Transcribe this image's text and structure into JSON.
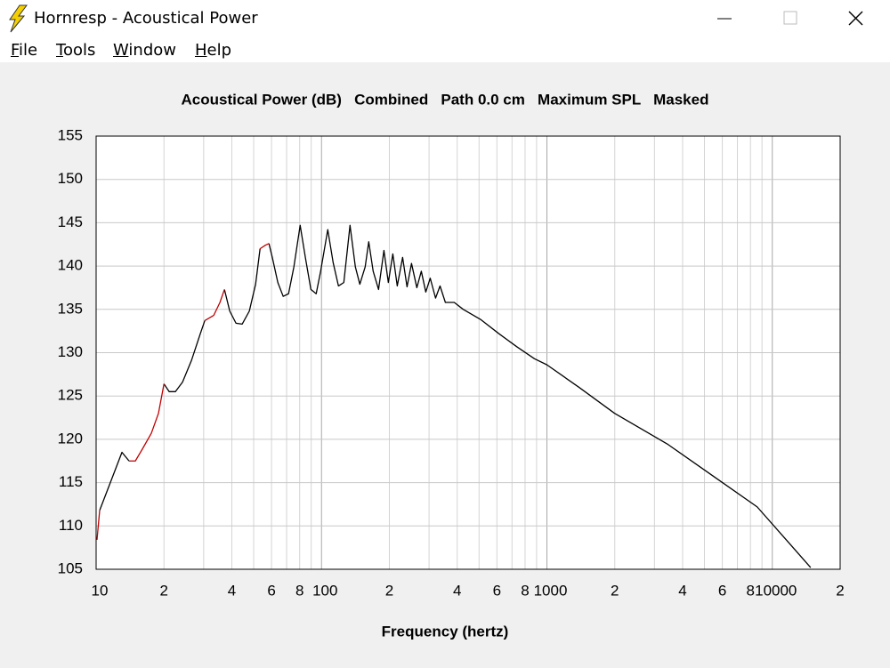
{
  "window": {
    "title": "Hornresp - Acoustical Power",
    "menu": [
      "File",
      "Tools",
      "Window",
      "Help"
    ]
  },
  "chart_data": {
    "type": "line",
    "title": "Acoustical Power (dB)   Combined   Path 0.0 cm   Maximum SPL   Masked",
    "x_label": "Frequency (hertz)",
    "x_scale": "log",
    "xlim": [
      10,
      20000
    ],
    "ylim": [
      105,
      155
    ],
    "xticks": [
      10,
      {
        "value": 20,
        "label": "2"
      },
      {
        "value": 40,
        "label": "4"
      },
      {
        "value": 60,
        "label": "6"
      },
      {
        "value": 80,
        "label": "8"
      },
      100,
      {
        "value": 200,
        "label": "2"
      },
      {
        "value": 400,
        "label": "4"
      },
      {
        "value": 600,
        "label": "6"
      },
      {
        "value": 800,
        "label": "8"
      },
      1000,
      {
        "value": 2000,
        "label": "2"
      },
      {
        "value": 4000,
        "label": "4"
      },
      {
        "value": 6000,
        "label": "6"
      },
      {
        "value": 8000,
        "label": "8"
      },
      10000,
      {
        "value": 20000,
        "label": "2"
      }
    ],
    "xgrid_minor": [
      30,
      50,
      70,
      90,
      300,
      500,
      700,
      900,
      3000,
      5000,
      7000,
      9000
    ],
    "yticks": [
      105,
      110,
      115,
      120,
      125,
      130,
      135,
      140,
      145,
      150,
      155
    ],
    "grid": true,
    "x": [
      10.09,
      10.37,
      13.02,
      14.0,
      14.93,
      16.06,
      17.58,
      18.91,
      20.0,
      21.1,
      22.47,
      24.17,
      26.48,
      29.0,
      30.35,
      33.24,
      35.43,
      37.09,
      39.16,
      41.74,
      44.48,
      47.83,
      51.0,
      53.38,
      56.36,
      58.45,
      60.6,
      64.0,
      67.6,
      71.4,
      75.4,
      80.4,
      84.9,
      89.7,
      94.7,
      99.1,
      106.6,
      112.6,
      118.9,
      125.6,
      133.8,
      141.3,
      147.9,
      156.2,
      162.0,
      169.5,
      179.1,
      189.2,
      197.9,
      207.2,
      216.8,
      229.0,
      239.6,
      250.8,
      264.8,
      277.2,
      290.1,
      303.6,
      320.6,
      335.6,
      354.4,
      388.1,
      425.2,
      510,
      611.9,
      733.9,
      880.5,
      1000,
      1388,
      1997,
      3447,
      5435,
      8568,
      14791
    ],
    "series": [
      {
        "color": "#000000",
        "values": [
          null,
          111.8,
          118.5,
          117.5,
          null,
          null,
          null,
          null,
          126.4,
          125.5,
          125.5,
          126.6,
          129.1,
          132.2,
          133.7,
          null,
          null,
          137.3,
          134.8,
          133.4,
          133.3,
          134.8,
          137.9,
          142.0,
          null,
          142.6,
          140.9,
          138.1,
          136.5,
          136.8,
          139.9,
          144.7,
          140.9,
          137.3,
          136.8,
          139.4,
          144.2,
          140.4,
          137.7,
          138.1,
          144.7,
          139.9,
          137.9,
          139.9,
          142.8,
          139.4,
          137.3,
          141.8,
          138.1,
          141.4,
          137.7,
          141.0,
          137.6,
          140.3,
          137.5,
          139.4,
          137.0,
          138.6,
          136.3,
          137.7,
          135.8,
          135.8,
          135.0,
          133.8,
          132.2,
          130.7,
          129.3,
          128.6,
          126.0,
          123.0,
          119.4,
          115.8,
          112.2,
          105.2
        ]
      },
      {
        "color": "#c00000",
        "values": [
          108.4,
          111.8,
          null,
          117.5,
          117.5,
          118.9,
          120.7,
          123.0,
          126.4,
          null,
          null,
          null,
          null,
          null,
          133.7,
          134.3,
          135.8,
          137.3,
          null,
          null,
          null,
          null,
          null,
          142.0,
          142.4,
          142.6,
          null,
          null,
          null,
          null,
          null,
          null,
          null,
          null,
          null,
          null,
          null,
          null,
          null,
          null,
          null,
          null,
          null,
          null,
          null,
          null,
          null,
          null,
          null,
          null,
          null,
          null,
          null,
          null,
          null,
          null,
          null,
          null,
          null,
          null,
          null,
          null,
          null,
          null,
          null,
          null,
          null,
          null,
          null,
          null,
          null,
          null,
          null,
          null
        ]
      }
    ]
  }
}
